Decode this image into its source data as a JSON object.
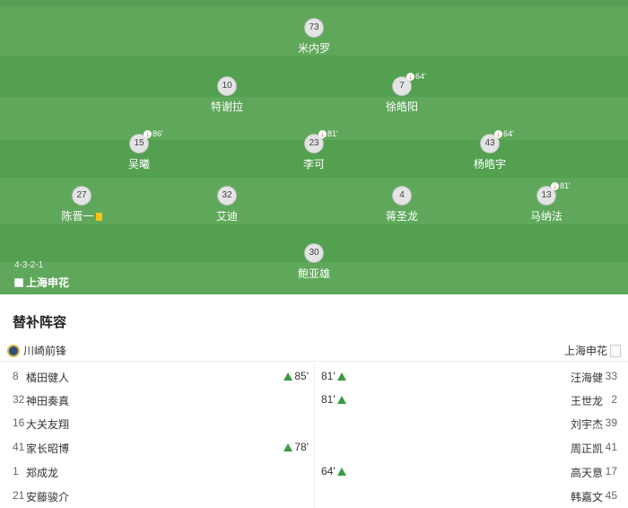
{
  "formation": "4-3-2-1",
  "team_name": "上海申花",
  "colors": {
    "pitch_dark": "#4e9a4c",
    "pitch_light": "#5fa85b",
    "sub_arrow_up": "#3a9b42",
    "sub_arrow_down": "#d32f2f",
    "yellow_card": "#f5c518"
  },
  "players": [
    {
      "number": "73",
      "name": "米内罗",
      "sub": ""
    },
    {
      "number": "10",
      "name": "特谢拉",
      "sub": ""
    },
    {
      "number": "7",
      "name": "徐皓阳",
      "sub": "64'"
    },
    {
      "number": "15",
      "name": "吴曦",
      "sub": "86'"
    },
    {
      "number": "23",
      "name": "李可",
      "sub": "81'"
    },
    {
      "number": "43",
      "name": "杨皓宇",
      "sub": "64'"
    },
    {
      "number": "27",
      "name": "陈晋一",
      "sub": "",
      "yellow_card": true
    },
    {
      "number": "32",
      "name": "艾迪",
      "sub": ""
    },
    {
      "number": "4",
      "name": "蒋圣龙",
      "sub": ""
    },
    {
      "number": "13",
      "name": "马纳法",
      "sub": "81'"
    },
    {
      "number": "30",
      "name": "鲍亚雄",
      "sub": ""
    }
  ],
  "substitutes": {
    "title": "替补阵容",
    "home_team": "川崎前锋",
    "away_team": "上海申花",
    "rows": [
      {
        "home_number": "8",
        "home_name": "橘田健人",
        "home_sub": "85'",
        "away_sub": "81'",
        "away_name": "汪海健",
        "away_number": "33"
      },
      {
        "home_number": "32",
        "home_name": "神田奏真",
        "home_sub": "",
        "away_sub": "81'",
        "away_name": "王世龙",
        "away_number": "2"
      },
      {
        "home_number": "16",
        "home_name": "大关友翔",
        "home_sub": "",
        "away_sub": "",
        "away_name": "刘宇杰",
        "away_number": "39"
      },
      {
        "home_number": "41",
        "home_name": "家长昭博",
        "home_sub": "78'",
        "away_sub": "",
        "away_name": "周正凯",
        "away_number": "41"
      },
      {
        "home_number": "1",
        "home_name": "郑成龙",
        "home_sub": "",
        "away_sub": "64'",
        "away_name": "高天意",
        "away_number": "17"
      },
      {
        "home_number": "21",
        "home_name": "安藤骏介",
        "home_sub": "",
        "away_sub": "",
        "away_name": "韩嘉文",
        "away_number": "45"
      }
    ]
  }
}
